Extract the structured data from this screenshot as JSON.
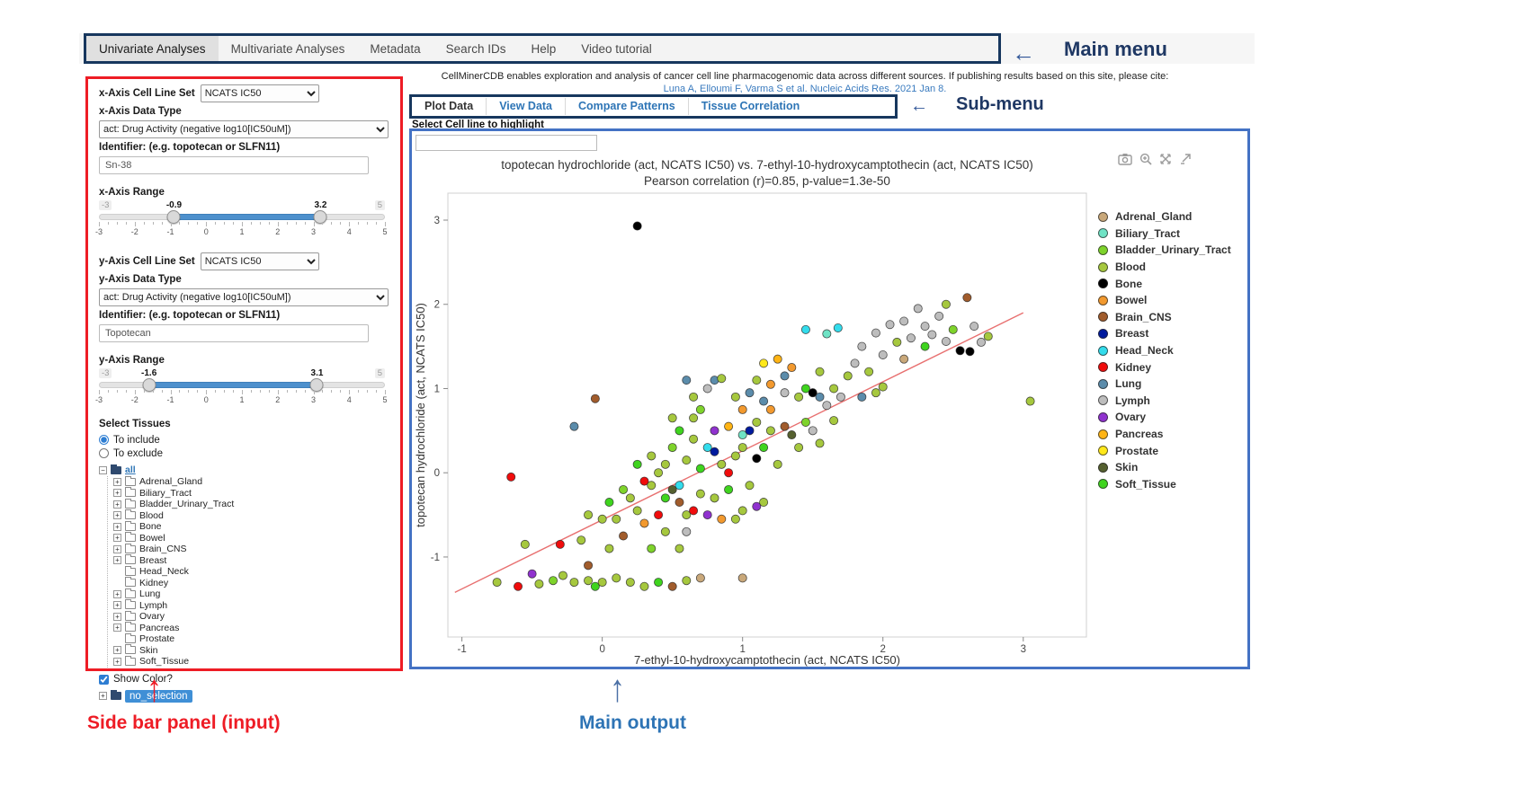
{
  "annotations": {
    "main_menu": "Main menu",
    "sub_menu": "Sub-menu",
    "sidebar": "Side bar panel (input)",
    "main_output": "Main output"
  },
  "main_menu": {
    "items": [
      {
        "label": "Univariate Analyses",
        "active": true
      },
      {
        "label": "Multivariate Analyses",
        "active": false
      },
      {
        "label": "Metadata",
        "active": false
      },
      {
        "label": "Search IDs",
        "active": false
      },
      {
        "label": "Help",
        "active": false
      },
      {
        "label": "Video tutorial",
        "active": false
      }
    ]
  },
  "citation": {
    "line1": "CellMinerCDB enables exploration and analysis of cancer cell line pharmacogenomic data across different sources. If publishing results based on this site, please cite:",
    "link": "Luna A, Elloumi F, Varma S et al. Nucleic Acids Res. 2021 Jan 8."
  },
  "submenu": {
    "items": [
      {
        "label": "Plot Data",
        "active": true
      },
      {
        "label": "View Data",
        "active": false
      },
      {
        "label": "Compare Patterns",
        "active": false
      },
      {
        "label": "Tissue Correlation",
        "active": false
      }
    ]
  },
  "highlight": {
    "label": "Select Cell line to highlight",
    "value": ""
  },
  "sidebar": {
    "x_axis": {
      "cell_line_set_label": "x-Axis Cell Line Set",
      "cell_line_set_value": "NCATS IC50",
      "data_type_label": "x-Axis Data Type",
      "data_type_value": "act: Drug Activity (negative log10[IC50uM])",
      "identifier_label": "Identifier: (e.g. topotecan or SLFN11)",
      "identifier_value": "Sn-38",
      "range_label": "x-Axis Range",
      "range": {
        "min": -3,
        "max": 5,
        "from": -0.9,
        "to": 3.2,
        "ticks": [
          -3,
          -2,
          -1,
          0,
          1,
          2,
          3,
          4,
          5
        ]
      }
    },
    "y_axis": {
      "cell_line_set_label": "y-Axis Cell Line Set",
      "cell_line_set_value": "NCATS IC50",
      "data_type_label": "y-Axis Data Type",
      "data_type_value": "act: Drug Activity (negative log10[IC50uM])",
      "identifier_label": "Identifier: (e.g. topotecan or SLFN11)",
      "identifier_value": "Topotecan",
      "range_label": "y-Axis Range",
      "range": {
        "min": -3,
        "max": 5,
        "from": -1.6,
        "to": 3.1,
        "ticks": [
          -3,
          -2,
          -1,
          0,
          1,
          2,
          3,
          4,
          5
        ]
      }
    },
    "tissues": {
      "label": "Select Tissues",
      "include_label": "To include",
      "exclude_label": "To exclude",
      "mode": "include",
      "root_label": "all",
      "items": [
        {
          "label": "Adrenal_Gland",
          "expandable": true
        },
        {
          "label": "Biliary_Tract",
          "expandable": true
        },
        {
          "label": "Bladder_Urinary_Tract",
          "expandable": true
        },
        {
          "label": "Blood",
          "expandable": true
        },
        {
          "label": "Bone",
          "expandable": true
        },
        {
          "label": "Bowel",
          "expandable": true
        },
        {
          "label": "Brain_CNS",
          "expandable": true
        },
        {
          "label": "Breast",
          "expandable": true
        },
        {
          "label": "Head_Neck",
          "expandable": false
        },
        {
          "label": "Kidney",
          "expandable": false
        },
        {
          "label": "Lung",
          "expandable": true
        },
        {
          "label": "Lymph",
          "expandable": true
        },
        {
          "label": "Ovary",
          "expandable": true
        },
        {
          "label": "Pancreas",
          "expandable": true
        },
        {
          "label": "Prostate",
          "expandable": false
        },
        {
          "label": "Skin",
          "expandable": true
        },
        {
          "label": "Soft_Tissue",
          "expandable": true
        }
      ],
      "show_color_label": "Show Color?",
      "show_color": true,
      "no_selection_label": "no_selection"
    }
  },
  "toolbar": {
    "icons": [
      "camera-icon",
      "zoom-in-icon",
      "pan-icon",
      "external-arrow-icon"
    ]
  },
  "chart_data": {
    "type": "scatter",
    "title": "topotecan hydrochloride (act, NCATS IC50) vs. 7-ethyl-10-hydroxycamptothecin (act, NCATS IC50)",
    "subtitle": "Pearson correlation (r)=0.85, p-value=1.3e-50",
    "xlabel": "7-ethyl-10-hydroxycamptothecin (act, NCATS IC50)",
    "ylabel": "topotecan hydrochloride (act, NCATS IC50)",
    "xlim": [
      -1.1,
      3.45
    ],
    "ylim": [
      -1.95,
      3.32
    ],
    "xticks": [
      -1,
      0,
      1,
      2,
      3
    ],
    "yticks": [
      -1,
      0,
      1,
      2,
      3
    ],
    "grid": false,
    "legend_position": "right",
    "trendline": {
      "x1": -1.05,
      "y1": -1.42,
      "x2": 3.0,
      "y2": 1.9,
      "color": "#e87070"
    },
    "tissues": [
      {
        "name": "Adrenal_Gland",
        "color": "#c9a87a"
      },
      {
        "name": "Biliary_Tract",
        "color": "#6fe3c5"
      },
      {
        "name": "Bladder_Urinary_Tract",
        "color": "#7ed32b"
      },
      {
        "name": "Blood",
        "color": "#a6c83e"
      },
      {
        "name": "Bone",
        "color": "#000000"
      },
      {
        "name": "Bowel",
        "color": "#f2992e"
      },
      {
        "name": "Brain_CNS",
        "color": "#a15c2c"
      },
      {
        "name": "Breast",
        "color": "#001a9e"
      },
      {
        "name": "Head_Neck",
        "color": "#33dcec"
      },
      {
        "name": "Kidney",
        "color": "#f00c0c"
      },
      {
        "name": "Lung",
        "color": "#5b8cab"
      },
      {
        "name": "Lymph",
        "color": "#bdbdbd"
      },
      {
        "name": "Ovary",
        "color": "#9032cf"
      },
      {
        "name": "Pancreas",
        "color": "#ffb414"
      },
      {
        "name": "Prostate",
        "color": "#ffe81a"
      },
      {
        "name": "Skin",
        "color": "#55602f"
      },
      {
        "name": "Soft_Tissue",
        "color": "#3fd41e"
      }
    ],
    "points": [
      [
        0.25,
        2.93,
        4
      ],
      [
        2.6,
        2.08,
        6
      ],
      [
        2.45,
        2.0,
        3
      ],
      [
        2.25,
        1.95,
        11
      ],
      [
        2.4,
        1.86,
        11
      ],
      [
        2.15,
        1.8,
        11
      ],
      [
        2.05,
        1.76,
        11
      ],
      [
        2.3,
        1.74,
        11
      ],
      [
        2.65,
        1.74,
        11
      ],
      [
        2.75,
        1.62,
        3
      ],
      [
        1.95,
        1.66,
        11
      ],
      [
        2.35,
        1.64,
        11
      ],
      [
        2.2,
        1.6,
        11
      ],
      [
        2.5,
        1.7,
        2
      ],
      [
        2.45,
        1.56,
        11
      ],
      [
        2.7,
        1.55,
        11
      ],
      [
        2.1,
        1.55,
        3
      ],
      [
        1.85,
        1.5,
        11
      ],
      [
        2.3,
        1.5,
        16
      ],
      [
        2.55,
        1.45,
        4
      ],
      [
        2.62,
        1.44,
        4
      ],
      [
        2.0,
        1.4,
        11
      ],
      [
        2.15,
        1.35,
        0
      ],
      [
        1.8,
        1.3,
        11
      ],
      [
        1.9,
        1.2,
        3
      ],
      [
        2.0,
        1.02,
        3
      ],
      [
        1.95,
        0.95,
        3
      ],
      [
        1.85,
        0.9,
        10
      ],
      [
        1.45,
        1.7,
        8
      ],
      [
        1.6,
        1.65,
        1
      ],
      [
        1.68,
        1.72,
        8
      ],
      [
        1.15,
        1.3,
        14
      ],
      [
        1.25,
        1.35,
        13
      ],
      [
        1.35,
        1.25,
        5
      ],
      [
        1.2,
        1.05,
        5
      ],
      [
        1.3,
        1.15,
        10
      ],
      [
        1.3,
        0.95,
        11
      ],
      [
        1.45,
        1.0,
        16
      ],
      [
        1.5,
        0.95,
        4
      ],
      [
        1.55,
        0.9,
        10
      ],
      [
        1.55,
        1.2,
        3
      ],
      [
        1.6,
        0.8,
        11
      ],
      [
        1.65,
        1.0,
        3
      ],
      [
        1.7,
        0.9,
        11
      ],
      [
        1.75,
        1.15,
        3
      ],
      [
        1.65,
        0.62,
        3
      ],
      [
        0.75,
        1.0,
        11
      ],
      [
        0.8,
        1.1,
        10
      ],
      [
        0.85,
        1.12,
        3
      ],
      [
        0.95,
        0.9,
        3
      ],
      [
        1.0,
        0.75,
        5
      ],
      [
        1.05,
        0.95,
        10
      ],
      [
        1.1,
        1.1,
        3
      ],
      [
        1.15,
        0.85,
        10
      ],
      [
        1.2,
        0.75,
        5
      ],
      [
        1.4,
        0.9,
        3
      ],
      [
        0.6,
        1.1,
        10
      ],
      [
        0.65,
        0.9,
        3
      ],
      [
        0.9,
        0.55,
        13
      ],
      [
        1.0,
        0.45,
        1
      ],
      [
        1.05,
        0.5,
        7
      ],
      [
        1.1,
        0.6,
        3
      ],
      [
        1.1,
        0.17,
        4
      ],
      [
        1.15,
        0.3,
        16
      ],
      [
        1.2,
        0.5,
        3
      ],
      [
        1.25,
        0.1,
        3
      ],
      [
        1.3,
        0.55,
        6
      ],
      [
        1.35,
        0.45,
        15
      ],
      [
        1.4,
        0.3,
        3
      ],
      [
        1.45,
        0.6,
        2
      ],
      [
        1.5,
        0.5,
        11
      ],
      [
        1.55,
        0.35,
        3
      ],
      [
        0.45,
        0.1,
        3
      ],
      [
        0.5,
        0.3,
        2
      ],
      [
        0.5,
        0.65,
        3
      ],
      [
        0.55,
        0.5,
        16
      ],
      [
        0.6,
        0.15,
        3
      ],
      [
        0.65,
        0.4,
        3
      ],
      [
        0.65,
        0.65,
        3
      ],
      [
        0.7,
        0.05,
        16
      ],
      [
        0.7,
        0.75,
        2
      ],
      [
        0.75,
        0.3,
        8
      ],
      [
        0.8,
        0.25,
        7
      ],
      [
        0.8,
        0.5,
        12
      ],
      [
        0.85,
        0.1,
        3
      ],
      [
        0.95,
        0.2,
        3
      ],
      [
        1.0,
        0.3,
        3
      ],
      [
        0.35,
        0.2,
        3
      ],
      [
        0.25,
        0.1,
        16
      ],
      [
        -0.65,
        -0.05,
        9
      ],
      [
        -0.2,
        0.55,
        10
      ],
      [
        -0.05,
        0.88,
        6
      ],
      [
        0.3,
        -0.1,
        9
      ],
      [
        0.55,
        -0.15,
        8
      ],
      [
        0.9,
        0.0,
        9
      ],
      [
        1.05,
        -0.15,
        3
      ],
      [
        0.15,
        -0.2,
        2
      ],
      [
        0.1,
        -0.55,
        3
      ],
      [
        0.2,
        -0.3,
        3
      ],
      [
        0.3,
        -0.6,
        5
      ],
      [
        0.35,
        -0.15,
        3
      ],
      [
        0.4,
        -0.5,
        9
      ],
      [
        0.45,
        -0.3,
        16
      ],
      [
        0.5,
        -0.2,
        15
      ],
      [
        0.55,
        -0.35,
        6
      ],
      [
        0.6,
        -0.5,
        3
      ],
      [
        0.65,
        -0.45,
        9
      ],
      [
        0.7,
        -0.25,
        3
      ],
      [
        0.75,
        -0.5,
        12
      ],
      [
        0.8,
        -0.3,
        3
      ],
      [
        0.85,
        -0.55,
        5
      ],
      [
        0.9,
        -0.2,
        16
      ],
      [
        0.95,
        -0.55,
        3
      ],
      [
        1.0,
        -0.45,
        3
      ],
      [
        1.1,
        -0.4,
        12
      ],
      [
        1.15,
        -0.35,
        3
      ],
      [
        0.0,
        -0.55,
        3
      ],
      [
        -0.1,
        -0.5,
        3
      ],
      [
        0.05,
        -0.35,
        16
      ],
      [
        0.25,
        -0.45,
        3
      ],
      [
        0.4,
        0.0,
        3
      ],
      [
        0.45,
        -0.7,
        3
      ],
      [
        0.6,
        -0.7,
        11
      ],
      [
        -0.75,
        -1.3,
        3
      ],
      [
        -0.6,
        -1.35,
        9
      ],
      [
        -0.55,
        -0.85,
        3
      ],
      [
        -0.5,
        -1.2,
        12
      ],
      [
        -0.45,
        -1.32,
        3
      ],
      [
        -0.35,
        -1.28,
        2
      ],
      [
        -0.3,
        -0.85,
        9
      ],
      [
        -0.28,
        -1.22,
        3
      ],
      [
        -0.2,
        -1.3,
        3
      ],
      [
        -0.15,
        -0.8,
        3
      ],
      [
        -0.1,
        -1.28,
        3
      ],
      [
        -0.05,
        -1.35,
        16
      ],
      [
        0.0,
        -1.3,
        3
      ],
      [
        0.05,
        -0.9,
        3
      ],
      [
        0.1,
        -1.25,
        3
      ],
      [
        0.15,
        -0.75,
        6
      ],
      [
        0.2,
        -1.3,
        3
      ],
      [
        0.3,
        -1.35,
        3
      ],
      [
        0.35,
        -0.9,
        2
      ],
      [
        0.4,
        -1.3,
        16
      ],
      [
        0.5,
        -1.35,
        6
      ],
      [
        0.55,
        -0.9,
        3
      ],
      [
        0.6,
        -1.28,
        3
      ],
      [
        0.7,
        -1.25,
        0
      ],
      [
        1.0,
        -1.25,
        0
      ],
      [
        -0.1,
        -1.1,
        6
      ],
      [
        3.05,
        0.85,
        3
      ]
    ]
  }
}
